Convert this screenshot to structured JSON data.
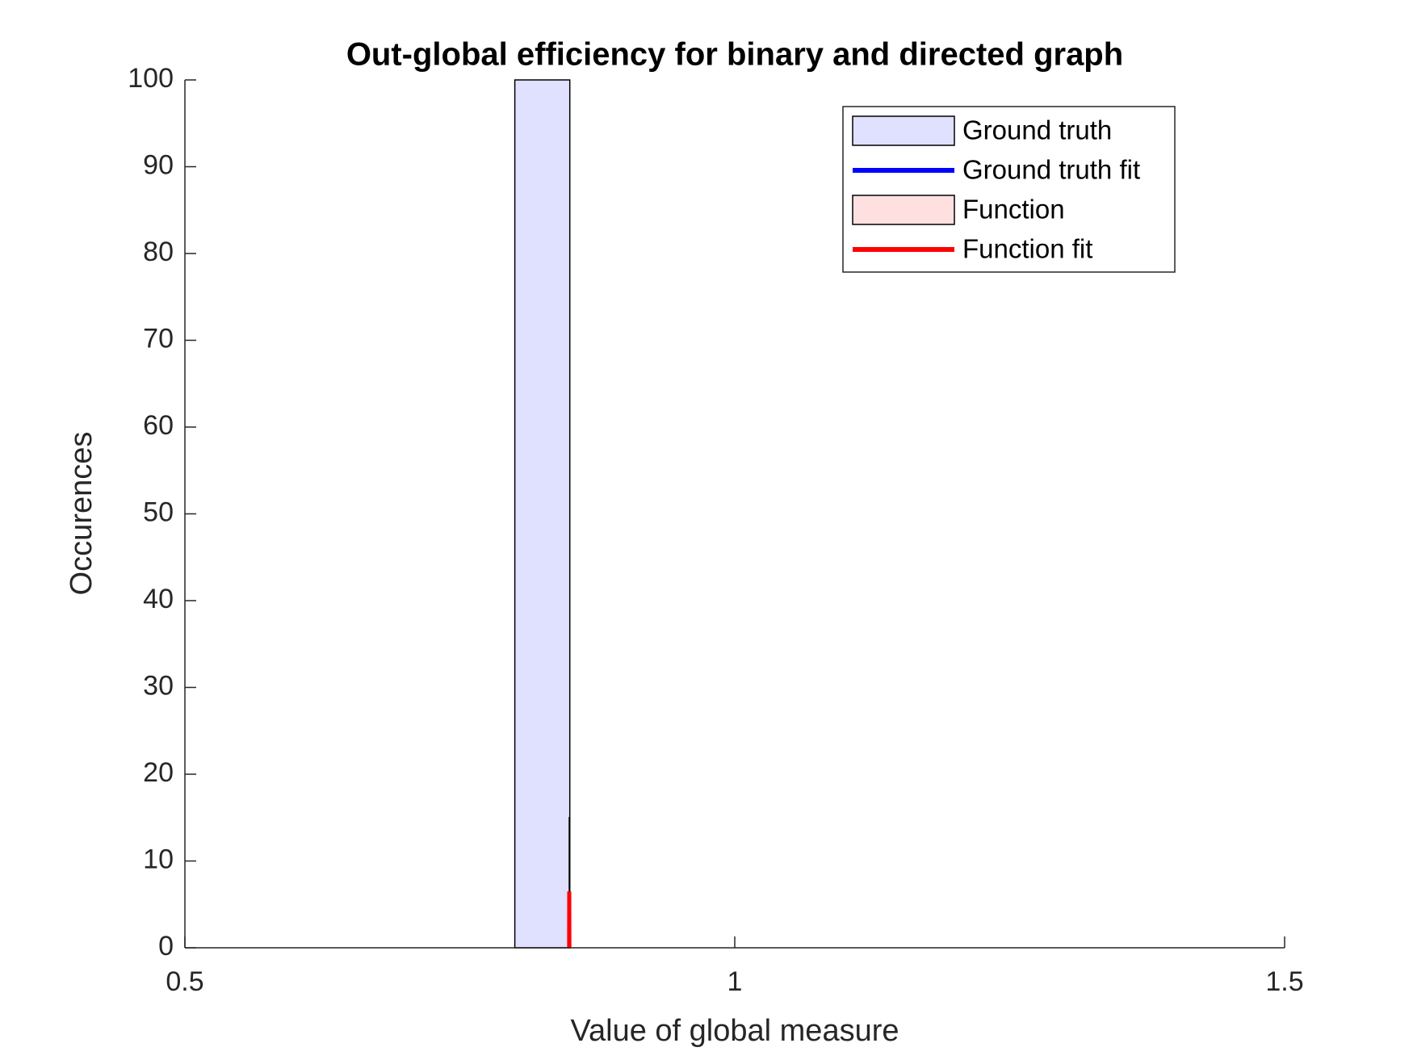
{
  "chart_data": {
    "type": "histogram",
    "title": "Out-global efficiency for binary and directed graph",
    "xlabel": "Value of global measure",
    "ylabel": "Occurences",
    "xlim": [
      0.5,
      1.5
    ],
    "xticks": [
      0.5,
      1,
      1.5
    ],
    "ylim": [
      0,
      100
    ],
    "yticks": [
      0,
      10,
      20,
      30,
      40,
      50,
      60,
      70,
      80,
      90,
      100
    ],
    "legend": "upper right",
    "series": [
      {
        "name": "Ground truth",
        "kind": "hist",
        "color": "#e0e0ff",
        "bins": [
          0.8,
          0.85
        ],
        "values": [
          100
        ]
      },
      {
        "name": "Ground truth fit",
        "kind": "line",
        "color": "#0000ff",
        "x": [],
        "values": []
      },
      {
        "name": "Function",
        "kind": "hist",
        "color": "#ffe0e0",
        "bins": [
          0.8495,
          0.8497
        ],
        "values": [
          15
        ]
      },
      {
        "name": "Function fit",
        "kind": "line",
        "color": "#ff0000",
        "x": [
          0.8494,
          0.8495,
          0.8496
        ],
        "values": [
          0,
          6.5,
          0
        ]
      }
    ]
  }
}
